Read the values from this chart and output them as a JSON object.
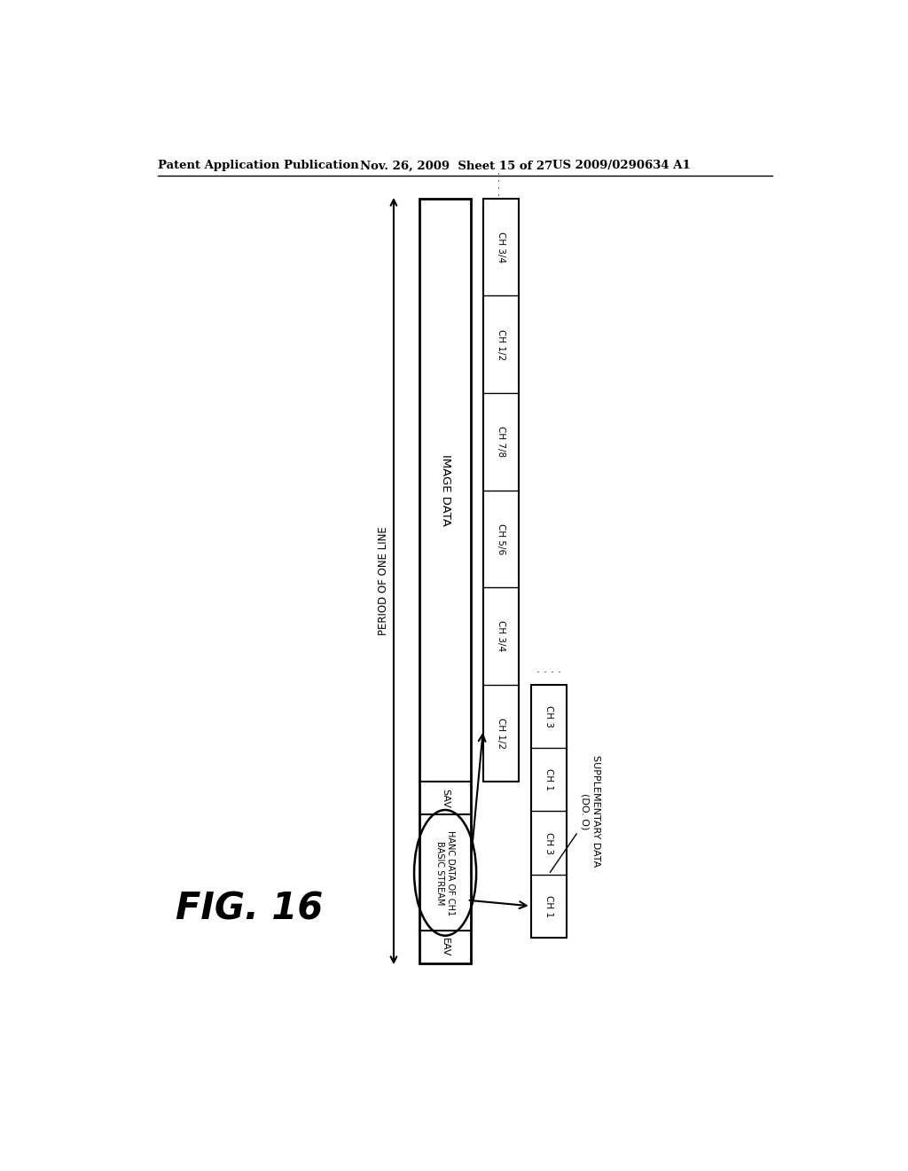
{
  "bg_color": "#ffffff",
  "header_left": "Patent Application Publication",
  "header_mid": "Nov. 26, 2009  Sheet 15 of 27",
  "header_right": "US 2009/0290634 A1",
  "fig_label": "FIG. 16",
  "period_label": "PERIOD OF ONE LINE",
  "image_data_label": "IMAGE DATA",
  "hanc_label": "HANC DATA OF CH1\nBASIC STREAM",
  "supp_label": "SUPPLEMENTARY DATA\n(DO. O)",
  "sav_label": "SAV",
  "eav_label": "EAV",
  "upper_channels": [
    "CH 1/2",
    "CH 3/4",
    "CH 5/6",
    "CH 7/8",
    "CH 1/2",
    "CH 3/4"
  ],
  "supp_channels_col1": [
    "CH 1",
    "CH 3",
    "CH 1"
  ],
  "supp_channels_col2": [
    "CH 1",
    "CH 3"
  ]
}
